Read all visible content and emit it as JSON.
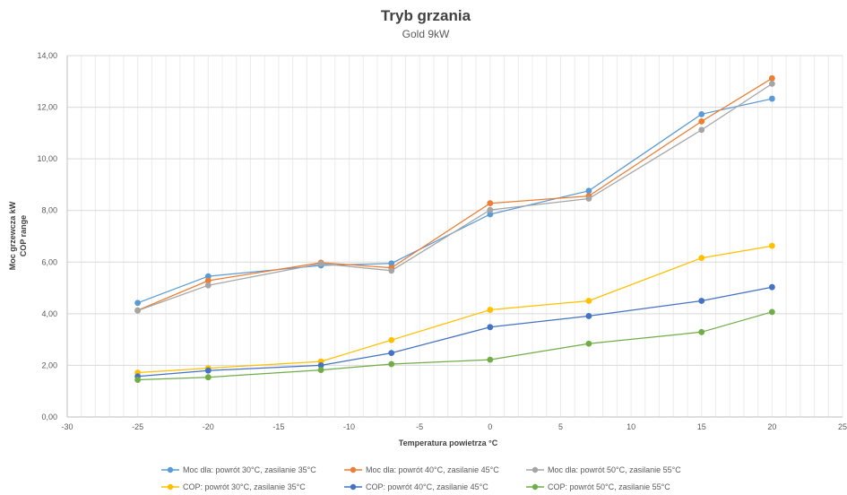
{
  "chart_data": {
    "type": "line",
    "title": "Tryb grzania",
    "subtitle": "Gold 9kW",
    "xlabel": "Temperatura powietrza °C",
    "ylabel": [
      "Moc grzewcza kW",
      "COP range"
    ],
    "xlim": [
      -30,
      25
    ],
    "ylim": [
      0,
      14
    ],
    "x_ticks": [
      -30,
      -25,
      -20,
      -15,
      -10,
      -5,
      0,
      5,
      10,
      15,
      20,
      25
    ],
    "x_tick_labels": [
      "-30",
      "-25",
      "-20",
      "-15",
      "-10",
      "-5",
      "0",
      "5",
      "10",
      "15",
      "20",
      "25"
    ],
    "y_ticks": [
      0,
      2,
      4,
      6,
      8,
      10,
      12,
      14
    ],
    "y_tick_labels": [
      "0,00",
      "2,00",
      "4,00",
      "6,00",
      "8,00",
      "10,00",
      "12,00",
      "14,00"
    ],
    "grid": "vertical minor and horizontal major",
    "legend_position": "bottom",
    "x": [
      -25,
      -20,
      -12,
      -7,
      0,
      7,
      15,
      20
    ],
    "series": [
      {
        "name": "Moc dla: powrót 30°C, zasilanie 35°C",
        "color": "#5b9bd5",
        "values": [
          4.42,
          5.45,
          5.87,
          5.95,
          7.85,
          8.76,
          11.73,
          12.33
        ]
      },
      {
        "name": "Moc dla: powrót 40°C, zasilanie 45°C",
        "color": "#ed7d31",
        "values": [
          4.13,
          5.28,
          5.98,
          5.78,
          8.28,
          8.56,
          11.45,
          13.12
        ]
      },
      {
        "name": "Moc dla: powrót 50°C, zasilanie 55°C",
        "color": "#a5a5a5",
        "values": [
          4.12,
          5.1,
          5.94,
          5.67,
          8.02,
          8.46,
          11.12,
          12.91
        ]
      },
      {
        "name": "COP: powrót 30°C, zasilanie 35°C",
        "color": "#ffc000",
        "values": [
          1.72,
          1.89,
          2.15,
          2.98,
          4.15,
          4.5,
          6.16,
          6.63
        ]
      },
      {
        "name": "COP: powrót 40°C, zasilanie 45°C",
        "color": "#4472c4",
        "values": [
          1.57,
          1.8,
          2.0,
          2.48,
          3.48,
          3.91,
          4.5,
          5.03
        ]
      },
      {
        "name": "COP: powrót 50°C, zasilanie 55°C",
        "color": "#70ad47",
        "values": [
          1.44,
          1.54,
          1.82,
          2.05,
          2.22,
          2.84,
          3.29,
          4.07
        ]
      }
    ]
  }
}
